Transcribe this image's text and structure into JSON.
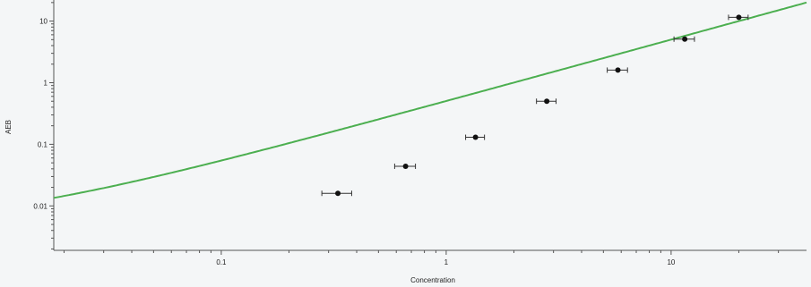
{
  "chart_data": {
    "type": "scatter",
    "title": "",
    "xlabel": "Concentration",
    "ylabel": "AEB",
    "x_scale": "log",
    "y_scale": "log",
    "xlim": [
      0.018,
      40
    ],
    "ylim": [
      0.0019,
      22
    ],
    "x_ticks": [
      {
        "value": 0.1,
        "label": "0.1"
      },
      {
        "value": 1,
        "label": "1"
      },
      {
        "value": 10,
        "label": "10"
      }
    ],
    "y_ticks": [
      {
        "value": 0.01,
        "label": "0.01"
      },
      {
        "value": 0.1,
        "label": "0.1"
      },
      {
        "value": 1,
        "label": "1"
      },
      {
        "value": 10,
        "label": "10"
      }
    ],
    "grid": false,
    "legend": "none",
    "series": [
      {
        "kind": "points_with_error_bars",
        "x": [
          0.33,
          0.66,
          1.35,
          2.8,
          5.8,
          11.5,
          20
        ],
        "y": [
          0.016,
          0.044,
          0.13,
          0.5,
          1.6,
          5.1,
          11.5
        ],
        "x_error": [
          0.05,
          0.07,
          0.13,
          0.28,
          0.6,
          1.2,
          2.0
        ],
        "color": "#111111"
      },
      {
        "kind": "fit_curve",
        "model": "a*x + b",
        "a": 0.5,
        "b": 0.0045,
        "color": "#4caf50"
      }
    ]
  }
}
